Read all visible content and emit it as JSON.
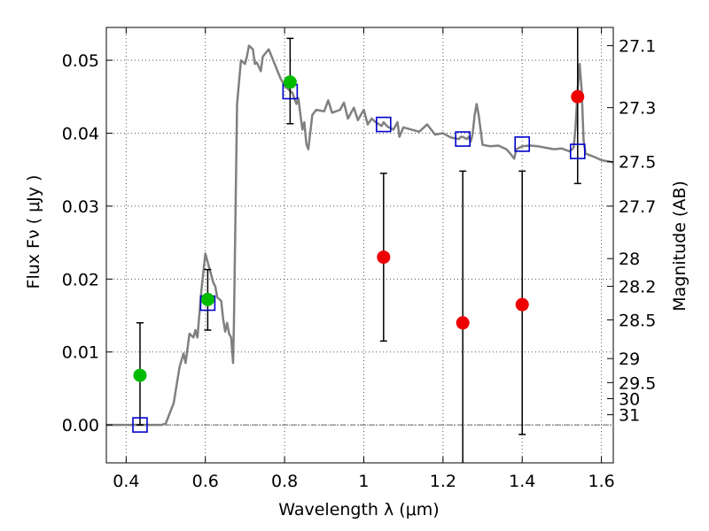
{
  "chart_data": {
    "type": "scatter",
    "xlabel": "Wavelength  λ (μm)",
    "ylabel": "Flux  Fν  ( μJy )",
    "y2label": "Magnitude (AB)",
    "xlim": [
      0.35,
      1.63
    ],
    "ylim": [
      -0.0052,
      0.0545
    ],
    "grid": true,
    "x_ticks": [
      0.4,
      0.6,
      0.8,
      1.0,
      1.2,
      1.4,
      1.6
    ],
    "x_tick_labels": [
      "0.4",
      "0.6",
      "0.8",
      "1",
      "1.2",
      "1.4",
      "1.6"
    ],
    "y_ticks": [
      0.0,
      0.01,
      0.02,
      0.03,
      0.04,
      0.05
    ],
    "y_tick_labels": [
      "0.00",
      "0.01",
      "0.02",
      "0.03",
      "0.04",
      "0.05"
    ],
    "y2_ticks": [
      {
        "label": "27.1",
        "flux": 0.052
      },
      {
        "label": "27.3",
        "flux": 0.0435
      },
      {
        "label": "27.5",
        "flux": 0.0361
      },
      {
        "label": "27.7",
        "flux": 0.03
      },
      {
        "label": "28",
        "flux": 0.0228
      },
      {
        "label": "28.2",
        "flux": 0.019
      },
      {
        "label": "28.5",
        "flux": 0.0144
      },
      {
        "label": "29",
        "flux": 0.0091
      },
      {
        "label": "29.5",
        "flux": 0.0058
      },
      {
        "label": "30",
        "flux": 0.0036
      },
      {
        "label": "31",
        "flux": 0.0014
      }
    ],
    "colors": {
      "model": "#808080",
      "green": "#00bb00",
      "red": "#ee0000",
      "square": "#0000cc",
      "errorbar": "#000000",
      "grid": "#555555"
    },
    "series": [
      {
        "kind": "model_spectrum",
        "points": [
          [
            0.35,
            0.0
          ],
          [
            0.49,
            0.0
          ],
          [
            0.5,
            0.0002
          ],
          [
            0.52,
            0.003
          ],
          [
            0.535,
            0.008
          ],
          [
            0.545,
            0.0098
          ],
          [
            0.55,
            0.0085
          ],
          [
            0.56,
            0.0125
          ],
          [
            0.57,
            0.012
          ],
          [
            0.575,
            0.013
          ],
          [
            0.58,
            0.012
          ],
          [
            0.59,
            0.0185
          ],
          [
            0.6,
            0.0235
          ],
          [
            0.61,
            0.0215
          ],
          [
            0.62,
            0.0195
          ],
          [
            0.625,
            0.019
          ],
          [
            0.63,
            0.0175
          ],
          [
            0.64,
            0.017
          ],
          [
            0.645,
            0.0145
          ],
          [
            0.65,
            0.0128
          ],
          [
            0.655,
            0.014
          ],
          [
            0.66,
            0.0125
          ],
          [
            0.665,
            0.012
          ],
          [
            0.67,
            0.0085
          ],
          [
            0.672,
            0.0135
          ],
          [
            0.68,
            0.044
          ],
          [
            0.69,
            0.05
          ],
          [
            0.7,
            0.0495
          ],
          [
            0.705,
            0.0505
          ],
          [
            0.71,
            0.052
          ],
          [
            0.72,
            0.0515
          ],
          [
            0.725,
            0.0495
          ],
          [
            0.73,
            0.0497
          ],
          [
            0.74,
            0.0485
          ],
          [
            0.745,
            0.0505
          ],
          [
            0.76,
            0.0515
          ],
          [
            0.775,
            0.0495
          ],
          [
            0.78,
            0.0488
          ],
          [
            0.79,
            0.0475
          ],
          [
            0.8,
            0.0465
          ],
          [
            0.81,
            0.046
          ],
          [
            0.82,
            0.0455
          ],
          [
            0.83,
            0.044
          ],
          [
            0.835,
            0.0448
          ],
          [
            0.84,
            0.0425
          ],
          [
            0.845,
            0.0405
          ],
          [
            0.85,
            0.0415
          ],
          [
            0.855,
            0.0385
          ],
          [
            0.86,
            0.0378
          ],
          [
            0.87,
            0.0425
          ],
          [
            0.88,
            0.0432
          ],
          [
            0.9,
            0.043
          ],
          [
            0.91,
            0.0445
          ],
          [
            0.92,
            0.0428
          ],
          [
            0.94,
            0.0432
          ],
          [
            0.95,
            0.0442
          ],
          [
            0.96,
            0.042
          ],
          [
            0.975,
            0.0435
          ],
          [
            0.985,
            0.0418
          ],
          [
            1.0,
            0.0432
          ],
          [
            1.01,
            0.0412
          ],
          [
            1.02,
            0.042
          ],
          [
            1.03,
            0.0415
          ],
          [
            1.045,
            0.041
          ],
          [
            1.05,
            0.0415
          ],
          [
            1.06,
            0.0409
          ],
          [
            1.075,
            0.0405
          ],
          [
            1.085,
            0.0415
          ],
          [
            1.09,
            0.0395
          ],
          [
            1.1,
            0.0408
          ],
          [
            1.12,
            0.0405
          ],
          [
            1.14,
            0.0402
          ],
          [
            1.16,
            0.0412
          ],
          [
            1.18,
            0.0398
          ],
          [
            1.2,
            0.04
          ],
          [
            1.22,
            0.0394
          ],
          [
            1.24,
            0.0392
          ],
          [
            1.245,
            0.0395
          ],
          [
            1.25,
            0.0395
          ],
          [
            1.26,
            0.0392
          ],
          [
            1.265,
            0.0395
          ],
          [
            1.27,
            0.0388
          ],
          [
            1.275,
            0.04
          ],
          [
            1.28,
            0.0425
          ],
          [
            1.285,
            0.044
          ],
          [
            1.29,
            0.0425
          ],
          [
            1.3,
            0.0384
          ],
          [
            1.32,
            0.0382
          ],
          [
            1.34,
            0.0383
          ],
          [
            1.36,
            0.0378
          ],
          [
            1.37,
            0.0372
          ],
          [
            1.38,
            0.0365
          ],
          [
            1.385,
            0.0378
          ],
          [
            1.4,
            0.0382
          ],
          [
            1.42,
            0.0383
          ],
          [
            1.44,
            0.0382
          ],
          [
            1.46,
            0.038
          ],
          [
            1.48,
            0.0378
          ],
          [
            1.5,
            0.0379
          ],
          [
            1.52,
            0.0375
          ],
          [
            1.53,
            0.038
          ],
          [
            1.535,
            0.041
          ],
          [
            1.54,
            0.046
          ],
          [
            1.545,
            0.0495
          ],
          [
            1.55,
            0.046
          ],
          [
            1.555,
            0.039
          ],
          [
            1.56,
            0.0372
          ],
          [
            1.58,
            0.0368
          ],
          [
            1.6,
            0.0363
          ],
          [
            1.63,
            0.036
          ]
        ]
      },
      {
        "kind": "model_band_fluxes",
        "marker": "open_square",
        "points": [
          [
            0.435,
            0.0
          ],
          [
            0.606,
            0.0167
          ],
          [
            0.814,
            0.0457
          ],
          [
            1.05,
            0.0412
          ],
          [
            1.25,
            0.0392
          ],
          [
            1.4,
            0.0385
          ],
          [
            1.54,
            0.0375
          ]
        ]
      },
      {
        "kind": "detections",
        "marker": "green_circle",
        "points": [
          {
            "x": 0.435,
            "y": 0.0068,
            "err_lo": 0.0,
            "err_hi": 0.014
          },
          {
            "x": 0.606,
            "y": 0.0172,
            "err_lo": 0.013,
            "err_hi": 0.0213
          },
          {
            "x": 0.814,
            "y": 0.047,
            "err_lo": 0.0413,
            "err_hi": 0.053
          }
        ]
      },
      {
        "kind": "upper_limits",
        "marker": "red_circle",
        "points": [
          {
            "x": 1.05,
            "y": 0.023,
            "err_lo": 0.0115,
            "err_hi": 0.0345
          },
          {
            "x": 1.25,
            "y": 0.014,
            "err_lo": -0.0052,
            "err_hi": 0.0348
          },
          {
            "x": 1.4,
            "y": 0.0165,
            "err_lo": -0.0013,
            "err_hi": 0.0348
          },
          {
            "x": 1.54,
            "y": 0.045,
            "err_lo": 0.0331,
            "err_hi": 0.0545
          }
        ]
      }
    ]
  }
}
